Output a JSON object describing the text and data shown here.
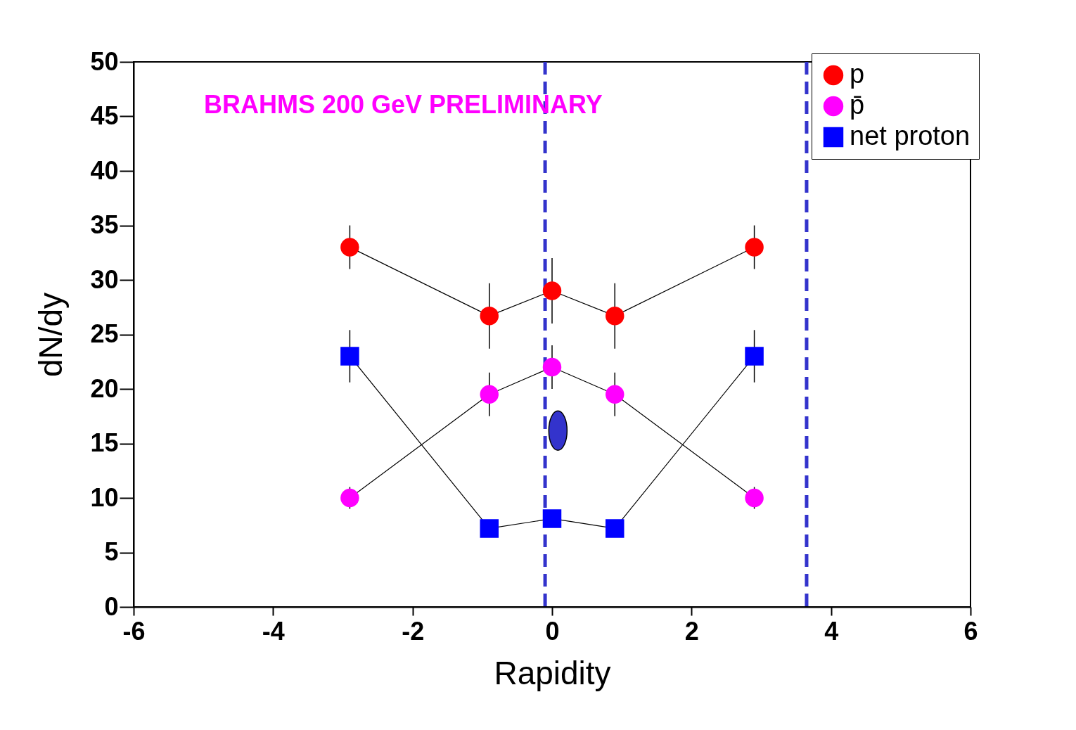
{
  "chart_data": {
    "type": "line",
    "xlabel": "Rapidity",
    "ylabel": "dN/dy",
    "annotations": [
      "BRAHMS 200 GeV PRELIMINARY"
    ],
    "x": [
      -2.9,
      -0.9,
      0.0,
      0.9,
      2.9
    ],
    "series": [
      {
        "name": "p",
        "color": "#ff0000",
        "marker": "circle",
        "values": [
          33,
          26.7,
          29,
          26.7,
          33
        ],
        "errors": [
          2,
          3,
          3,
          3,
          2
        ]
      },
      {
        "name": "p̄",
        "color": "#ff00ff",
        "marker": "circle",
        "values": [
          10,
          19.5,
          22,
          19.5,
          10
        ],
        "errors": [
          1,
          2,
          2,
          2,
          1
        ]
      },
      {
        "name": "net proton",
        "color": "#0000ff",
        "marker": "square",
        "values": [
          23,
          7.2,
          8.1,
          7.2,
          23
        ],
        "errors": [
          2.4,
          null,
          null,
          null,
          2.4
        ]
      }
    ],
    "xlim": [
      -6,
      6
    ],
    "xticks": [
      {
        "value": -6,
        "label": "-6"
      },
      {
        "value": -4,
        "label": "-4"
      },
      {
        "value": -2,
        "label": "-2"
      },
      0,
      2,
      4,
      6
    ],
    "ylim": [
      0,
      50
    ],
    "yticks": [
      0,
      5,
      10,
      15,
      20,
      25,
      30,
      35,
      40,
      45,
      50
    ],
    "ref_lines": [
      {
        "axis": "x",
        "value": -0.1,
        "color": "#3333cc",
        "line_style": "dashed"
      },
      {
        "axis": "x",
        "value": 3.65,
        "color": "#3333cc",
        "line_style": "dashed"
      }
    ],
    "grid": false,
    "legend": "top right",
    "line_style": "solid"
  }
}
